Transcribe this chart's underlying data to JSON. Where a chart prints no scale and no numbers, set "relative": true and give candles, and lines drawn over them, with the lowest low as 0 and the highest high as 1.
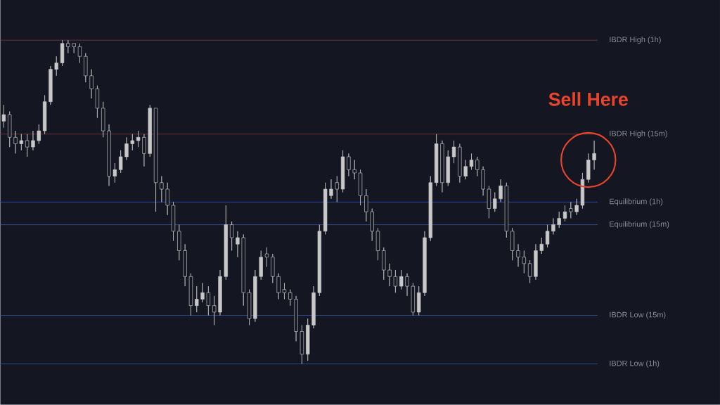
{
  "chart_data": {
    "type": "candlestick",
    "relative": true,
    "color": "#c8c8c8",
    "categories": [
      null,
      null,
      null,
      null,
      null,
      null,
      null,
      null,
      null,
      null,
      null,
      null,
      null,
      null,
      null,
      null,
      null,
      null,
      null,
      null,
      null,
      null,
      null,
      null,
      null,
      null,
      null,
      null,
      null,
      null,
      null,
      null,
      null,
      null,
      null,
      null,
      null,
      null,
      null,
      null,
      null,
      null,
      null,
      null,
      null,
      null,
      null,
      null,
      null,
      null,
      null,
      null,
      null,
      null,
      null,
      null,
      null,
      null,
      null,
      null,
      null,
      null,
      null,
      null,
      null,
      null,
      null,
      null,
      null,
      null,
      null,
      null,
      null,
      null,
      null,
      null,
      null,
      null,
      null,
      null,
      null,
      null,
      null,
      null,
      null,
      null,
      null,
      null,
      null,
      null,
      null,
      null,
      null,
      null,
      null,
      null,
      null,
      null,
      null,
      null,
      null,
      null
    ],
    "ohlc": [
      [
        0.75,
        0.8,
        0.73,
        0.77
      ],
      [
        0.77,
        0.78,
        0.67,
        0.7
      ],
      [
        0.7,
        0.72,
        0.65,
        0.68
      ],
      [
        0.68,
        0.71,
        0.66,
        0.69
      ],
      [
        0.69,
        0.71,
        0.64,
        0.67
      ],
      [
        0.67,
        0.72,
        0.66,
        0.69
      ],
      [
        0.69,
        0.74,
        0.68,
        0.72
      ],
      [
        0.72,
        0.83,
        0.71,
        0.81
      ],
      [
        0.81,
        0.92,
        0.8,
        0.91
      ],
      [
        0.91,
        0.95,
        0.89,
        0.93
      ],
      [
        0.93,
        1.0,
        0.92,
        0.99
      ],
      [
        0.99,
        1.0,
        0.96,
        0.98
      ],
      [
        0.99,
        0.99,
        0.96,
        0.98
      ],
      [
        0.98,
        0.99,
        0.93,
        0.95
      ],
      [
        0.95,
        0.96,
        0.87,
        0.89
      ],
      [
        0.89,
        0.91,
        0.82,
        0.85
      ],
      [
        0.85,
        0.86,
        0.76,
        0.79
      ],
      [
        0.79,
        0.81,
        0.7,
        0.72
      ],
      [
        0.72,
        0.74,
        0.55,
        0.58
      ],
      [
        0.58,
        0.62,
        0.56,
        0.6
      ],
      [
        0.6,
        0.66,
        0.59,
        0.64
      ],
      [
        0.64,
        0.7,
        0.63,
        0.68
      ],
      [
        0.68,
        0.71,
        0.66,
        0.69
      ],
      [
        0.69,
        0.72,
        0.67,
        0.7
      ],
      [
        0.7,
        0.71,
        0.61,
        0.65
      ],
      [
        0.65,
        0.8,
        0.64,
        0.79
      ],
      [
        0.79,
        0.79,
        0.47,
        0.56
      ],
      [
        0.56,
        0.58,
        0.5,
        0.54
      ],
      [
        0.54,
        0.56,
        0.46,
        0.49
      ],
      [
        0.49,
        0.5,
        0.38,
        0.41
      ],
      [
        0.41,
        0.43,
        0.32,
        0.35
      ],
      [
        0.35,
        0.37,
        0.24,
        0.27
      ],
      [
        0.27,
        0.28,
        0.15,
        0.18
      ],
      [
        0.18,
        0.24,
        0.16,
        0.2
      ],
      [
        0.2,
        0.25,
        0.19,
        0.22
      ],
      [
        0.22,
        0.24,
        0.15,
        0.18
      ],
      [
        0.18,
        0.21,
        0.12,
        0.16
      ],
      [
        0.16,
        0.29,
        0.15,
        0.27
      ],
      [
        0.27,
        0.49,
        0.26,
        0.43
      ],
      [
        0.43,
        0.44,
        0.35,
        0.39
      ],
      [
        0.37,
        0.41,
        0.33,
        0.39
      ],
      [
        0.39,
        0.4,
        0.18,
        0.22
      ],
      [
        0.22,
        0.23,
        0.12,
        0.14
      ],
      [
        0.14,
        0.29,
        0.13,
        0.27
      ],
      [
        0.27,
        0.35,
        0.26,
        0.33
      ],
      [
        0.34,
        0.36,
        0.3,
        0.33
      ],
      [
        0.33,
        0.34,
        0.25,
        0.27
      ],
      [
        0.27,
        0.28,
        0.2,
        0.22
      ],
      [
        0.23,
        0.25,
        0.2,
        0.22
      ],
      [
        0.22,
        0.23,
        0.18,
        0.2
      ],
      [
        0.2,
        0.21,
        0.07,
        0.1
      ],
      [
        0.1,
        0.12,
        0.0,
        0.03
      ],
      [
        0.03,
        0.14,
        0.01,
        0.12
      ],
      [
        0.12,
        0.24,
        0.11,
        0.22
      ],
      [
        0.22,
        0.43,
        0.21,
        0.41
      ],
      [
        0.41,
        0.56,
        0.4,
        0.54
      ],
      [
        0.52,
        0.57,
        0.51,
        0.54
      ],
      [
        0.56,
        0.58,
        0.5,
        0.54
      ],
      [
        0.54,
        0.66,
        0.53,
        0.64
      ],
      [
        0.64,
        0.65,
        0.58,
        0.6
      ],
      [
        0.6,
        0.63,
        0.57,
        0.59
      ],
      [
        0.59,
        0.6,
        0.49,
        0.52
      ],
      [
        0.52,
        0.54,
        0.44,
        0.47
      ],
      [
        0.47,
        0.48,
        0.38,
        0.41
      ],
      [
        0.41,
        0.42,
        0.32,
        0.35
      ],
      [
        0.35,
        0.36,
        0.26,
        0.29
      ],
      [
        0.29,
        0.31,
        0.24,
        0.27
      ],
      [
        0.27,
        0.29,
        0.22,
        0.24
      ],
      [
        0.24,
        0.29,
        0.23,
        0.27
      ],
      [
        0.27,
        0.28,
        0.21,
        0.24
      ],
      [
        0.24,
        0.25,
        0.15,
        0.16
      ],
      [
        0.16,
        0.24,
        0.15,
        0.22
      ],
      [
        0.22,
        0.41,
        0.21,
        0.39
      ],
      [
        0.39,
        0.58,
        0.38,
        0.56
      ],
      [
        0.56,
        0.71,
        0.55,
        0.68
      ],
      [
        0.68,
        0.69,
        0.53,
        0.56
      ],
      [
        0.56,
        0.66,
        0.55,
        0.64
      ],
      [
        0.64,
        0.69,
        0.62,
        0.67
      ],
      [
        0.67,
        0.68,
        0.56,
        0.58
      ],
      [
        0.58,
        0.63,
        0.57,
        0.61
      ],
      [
        0.61,
        0.65,
        0.6,
        0.63
      ],
      [
        0.63,
        0.64,
        0.58,
        0.6
      ],
      [
        0.6,
        0.61,
        0.52,
        0.54
      ],
      [
        0.54,
        0.55,
        0.45,
        0.48
      ],
      [
        0.48,
        0.53,
        0.47,
        0.51
      ],
      [
        0.51,
        0.57,
        0.5,
        0.55
      ],
      [
        0.55,
        0.56,
        0.39,
        0.41
      ],
      [
        0.41,
        0.42,
        0.32,
        0.35
      ],
      [
        0.35,
        0.37,
        0.3,
        0.33
      ],
      [
        0.33,
        0.35,
        0.28,
        0.31
      ],
      [
        0.31,
        0.32,
        0.25,
        0.27
      ],
      [
        0.27,
        0.37,
        0.26,
        0.35
      ],
      [
        0.35,
        0.39,
        0.34,
        0.37
      ],
      [
        0.37,
        0.43,
        0.36,
        0.41
      ],
      [
        0.41,
        0.45,
        0.4,
        0.43
      ],
      [
        0.43,
        0.47,
        0.42,
        0.45
      ],
      [
        0.45,
        0.49,
        0.44,
        0.47
      ],
      [
        0.48,
        0.5,
        0.45,
        0.47
      ],
      [
        0.47,
        0.51,
        0.46,
        0.49
      ],
      [
        0.49,
        0.59,
        0.48,
        0.57
      ],
      [
        0.57,
        0.65,
        0.56,
        0.63
      ],
      [
        0.63,
        0.69,
        0.6,
        0.65
      ]
    ],
    "ref_lines": [
      {
        "axis": "y",
        "value": 1.0,
        "label": "IBDR High (1h)",
        "color": "#7a3b45"
      },
      {
        "axis": "y",
        "value": 0.71,
        "label": "IBDR High (15m)",
        "color": "#7a3b45"
      },
      {
        "axis": "y",
        "value": 0.5,
        "label": "Equilibrium (1h)",
        "color": "#3052c4"
      },
      {
        "axis": "y",
        "value": 0.43,
        "label": "Equilibrium (15m)",
        "color": "#3a55b0"
      },
      {
        "axis": "y",
        "value": 0.15,
        "label": "IBDR Low (15m)",
        "color": "#3050b0"
      },
      {
        "axis": "y",
        "value": 0.0,
        "label": "IBDR Low (1h)",
        "color": "#3050b0"
      }
    ],
    "annotations": [
      "Sell Here"
    ]
  }
}
